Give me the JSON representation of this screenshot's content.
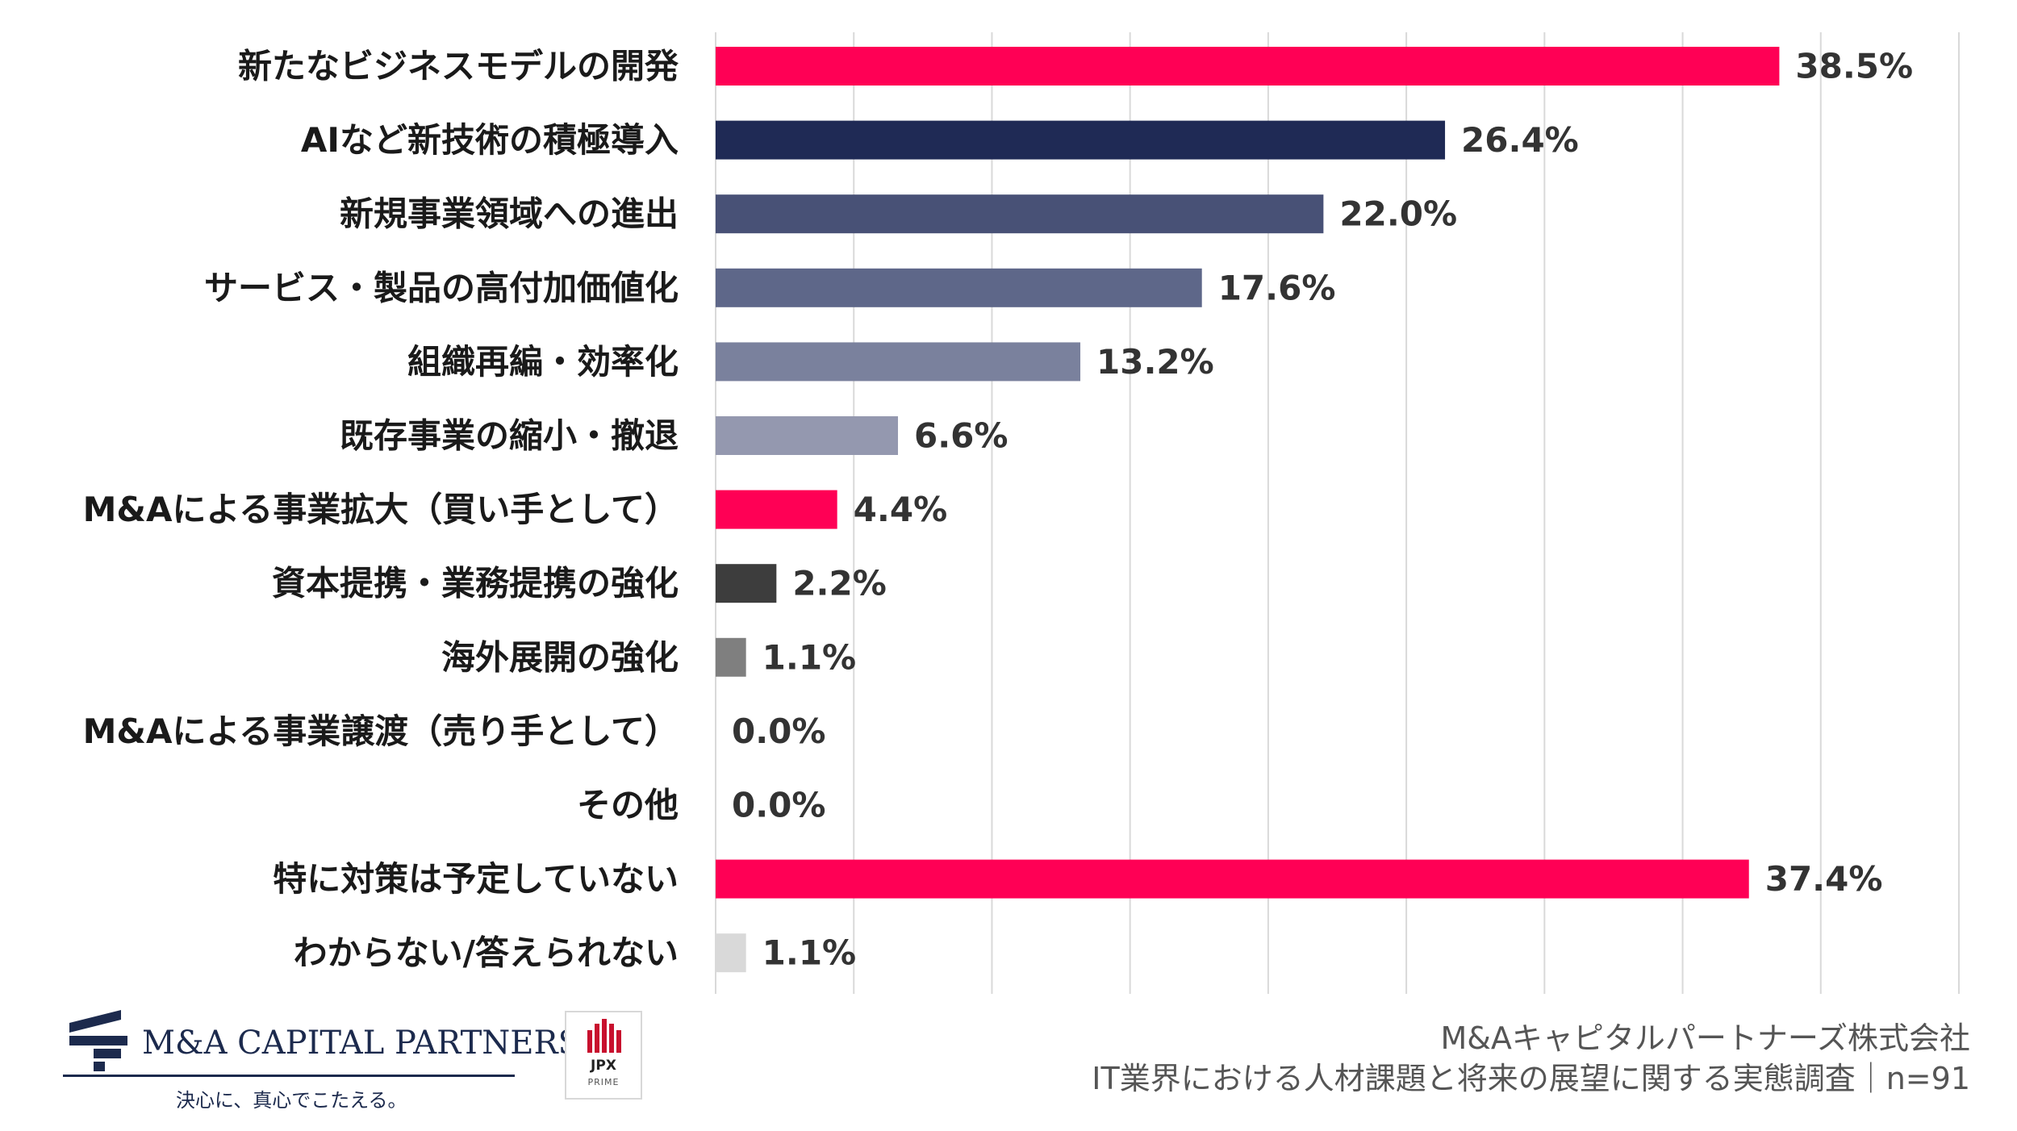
{
  "chart_data": {
    "type": "bar",
    "orientation": "horizontal",
    "categories": [
      "新たなビジネスモデルの開発",
      "AIなど新技術の積極導入",
      "新規事業領域への進出",
      "サービス・製品の高付加価値化",
      "組織再編・効率化",
      "既存事業の縮小・撤退",
      "M&Aによる事業拡大（買い手として）",
      "資本提携・業務提携の強化",
      "海外展開の強化",
      "M&Aによる事業譲渡（売り手として）",
      "その他",
      "特に対策は予定していない",
      "わからない/答えられない"
    ],
    "values": [
      38.5,
      26.4,
      22.0,
      17.6,
      13.2,
      6.6,
      4.4,
      2.2,
      1.1,
      0.0,
      0.0,
      37.4,
      1.1
    ],
    "value_labels": [
      "38.5%",
      "26.4%",
      "22.0%",
      "17.6%",
      "13.2%",
      "6.6%",
      "4.4%",
      "2.2%",
      "1.1%",
      "0.0%",
      "0.0%",
      "37.4%",
      "1.1%"
    ],
    "colors": [
      "#ff0055",
      "#1f2a55",
      "#485176",
      "#5e6789",
      "#7a819d",
      "#9498af",
      "#ff0055",
      "#3d3d3d",
      "#7f7f7f",
      "#bfbfbf",
      "#bfbfbf",
      "#ff0055",
      "#d9d9d9"
    ],
    "xlim": [
      0,
      45
    ],
    "grid": true,
    "title": "",
    "xlabel": "",
    "ylabel": ""
  },
  "branding": {
    "company_logo": "M&A CAPITAL PARTNERS",
    "tagline": "決心に、真心でこたえる。",
    "jpx_badge": "JPX",
    "jpx_sub": "PRIME"
  },
  "source": {
    "line1": "M&Aキャピタルパートナーズ株式会社",
    "line2": "IT業界における人材課題と将来の展望に関する実態調査｜n=91"
  },
  "colors": {
    "brand_navy": "#1c2a4d",
    "grid": "#d9d9d9"
  }
}
